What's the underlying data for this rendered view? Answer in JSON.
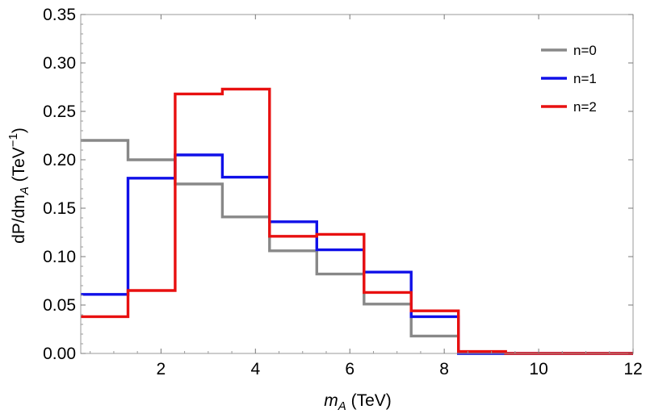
{
  "chart_data": {
    "type": "histogram-step",
    "title": "",
    "xlabel": {
      "main": "m",
      "sub": "A",
      "unit": " (TeV)"
    },
    "ylabel": {
      "prefix": "dP/dm",
      "sub": "A",
      "unit": " (TeV",
      "sup": "−1",
      "close": ")"
    },
    "xlim": [
      0.3,
      12
    ],
    "ylim": [
      0,
      0.35
    ],
    "xticks": [
      2,
      4,
      6,
      8,
      10,
      12
    ],
    "xtick_labels": [
      "2",
      "4",
      "6",
      "8",
      "10",
      "12"
    ],
    "yticks": [
      0,
      0.05,
      0.1,
      0.15,
      0.2,
      0.25,
      0.3,
      0.35
    ],
    "ytick_labels": [
      "0.00",
      "0.05",
      "0.10",
      "0.15",
      "0.20",
      "0.25",
      "0.30",
      "0.35"
    ],
    "bin_edges": [
      0.3,
      1.3,
      2.3,
      3.3,
      4.3,
      5.3,
      6.3,
      7.3,
      8.3,
      9.3,
      10.3,
      11.3,
      12.3
    ],
    "legend_position": "top-right",
    "series": [
      {
        "name": "n=0",
        "color": "#888888",
        "values": [
          0.22,
          0.2,
          0.175,
          0.141,
          0.106,
          0.082,
          0.051,
          0.018,
          0.0,
          0.0,
          0.0,
          0.0
        ]
      },
      {
        "name": "n=1",
        "color": "#1010e8",
        "values": [
          0.061,
          0.181,
          0.205,
          0.182,
          0.136,
          0.107,
          0.084,
          0.038,
          0.0,
          0.0,
          0.0,
          0.0
        ]
      },
      {
        "name": "n=2",
        "color": "#e81010",
        "values": [
          0.038,
          0.065,
          0.268,
          0.273,
          0.121,
          0.123,
          0.063,
          0.044,
          0.002,
          0.0,
          0.0,
          0.0
        ]
      }
    ]
  }
}
